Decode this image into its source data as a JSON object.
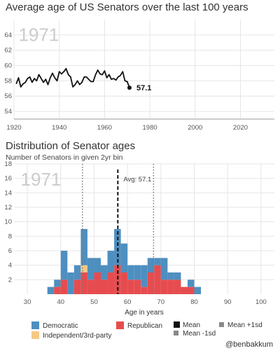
{
  "chart_data": [
    {
      "type": "line",
      "title": "Average age of US Senators over the last 100 years",
      "year_label": "1971",
      "xlim": [
        1920,
        2035
      ],
      "ylim": [
        53,
        66
      ],
      "x_ticks": [
        1920,
        1940,
        1960,
        1980,
        2000,
        2020
      ],
      "y_ticks": [
        54,
        56,
        58,
        60,
        62,
        64
      ],
      "end_label": "57.1",
      "series": [
        {
          "x": [
            1921,
            1922,
            1923,
            1924,
            1925,
            1926,
            1927,
            1928,
            1929,
            1930,
            1931,
            1932,
            1933,
            1934,
            1935,
            1936,
            1937,
            1938,
            1939,
            1940,
            1941,
            1942,
            1943,
            1944,
            1945,
            1946,
            1947,
            1948,
            1949,
            1950,
            1951,
            1952,
            1953,
            1954,
            1955,
            1956,
            1957,
            1958,
            1959,
            1960,
            1961,
            1962,
            1963,
            1964,
            1965,
            1966,
            1967,
            1968,
            1969,
            1970,
            1971
          ],
          "y": [
            57.6,
            58.4,
            57.2,
            57.6,
            57.8,
            58.3,
            58.5,
            57.8,
            58.3,
            58.0,
            58.8,
            58.3,
            57.8,
            58.2,
            57.5,
            58.4,
            59.0,
            58.4,
            58.0,
            59.2,
            58.9,
            59.2,
            59.6,
            58.8,
            58.5,
            57.2,
            57.5,
            58.0,
            57.5,
            57.8,
            58.5,
            58.5,
            58.2,
            57.9,
            57.9,
            58.8,
            59.4,
            58.9,
            58.8,
            59.3,
            58.4,
            58.8,
            58.2,
            58.3,
            58.1,
            58.5,
            58.7,
            59.2,
            58.0,
            57.9,
            57.1
          ]
        }
      ]
    },
    {
      "type": "bar",
      "title": "Distribution of Senator ages",
      "subtitle": "Number of Senators in given 2yr bin",
      "year_label": "1971",
      "xlabel": "Age in years",
      "xlim": [
        26,
        104
      ],
      "ylim": [
        0,
        18
      ],
      "x_ticks": [
        30,
        40,
        50,
        60,
        70,
        80,
        90,
        100
      ],
      "y_ticks": [
        2,
        4,
        6,
        8,
        10,
        12,
        14,
        16,
        18
      ],
      "bin_width": 2,
      "mean": 57.1,
      "mean_label": "Avg: 57.1",
      "sd_lower": 46.5,
      "sd_upper": 67.8,
      "series": [
        {
          "name": "Democratic",
          "color": "#4e8fc0",
          "bins": [
            34,
            36,
            38,
            40,
            42,
            44,
            46,
            48,
            50,
            52,
            54,
            56,
            58,
            60,
            62,
            64,
            66,
            68,
            70,
            72,
            74,
            76,
            78,
            80
          ],
          "values": [
            0,
            1,
            1,
            4,
            3,
            2,
            5,
            3,
            2,
            2,
            3,
            5,
            4,
            2,
            2,
            3,
            2,
            1,
            3,
            1,
            1,
            0,
            1,
            1
          ]
        },
        {
          "name": "Republican",
          "color": "#e64c4f",
          "bins": [
            34,
            36,
            38,
            40,
            42,
            44,
            46,
            48,
            50,
            52,
            54,
            56,
            58,
            60,
            62,
            64,
            66,
            68,
            70,
            72,
            74,
            76,
            78,
            80
          ],
          "values": [
            0,
            0,
            1,
            2,
            0,
            2,
            3,
            2,
            3,
            2,
            3,
            4,
            3,
            2,
            2,
            1,
            3,
            4,
            2,
            2,
            2,
            1,
            1,
            0
          ]
        },
        {
          "name": "Independent/3rd-party",
          "color": "#f5c985",
          "bins": [
            34,
            36,
            38,
            40,
            42,
            44,
            46,
            48,
            50,
            52,
            54,
            56,
            58,
            60,
            62,
            64,
            66,
            68,
            70,
            72,
            74,
            76,
            78,
            80
          ],
          "values": [
            0,
            0,
            0,
            0,
            0,
            0,
            1,
            0,
            0,
            0,
            0,
            0,
            0,
            0,
            0,
            0,
            0,
            0,
            0,
            0,
            0,
            0,
            0,
            0
          ]
        }
      ],
      "legend": {
        "democratic": "Democratic",
        "republican": "Republican",
        "independent": "Independent/3rd-party",
        "mean": "Mean",
        "mean_minus": "Mean -1sd",
        "mean_plus": "Mean +1sd"
      }
    }
  ],
  "credit": "@benbakkum"
}
